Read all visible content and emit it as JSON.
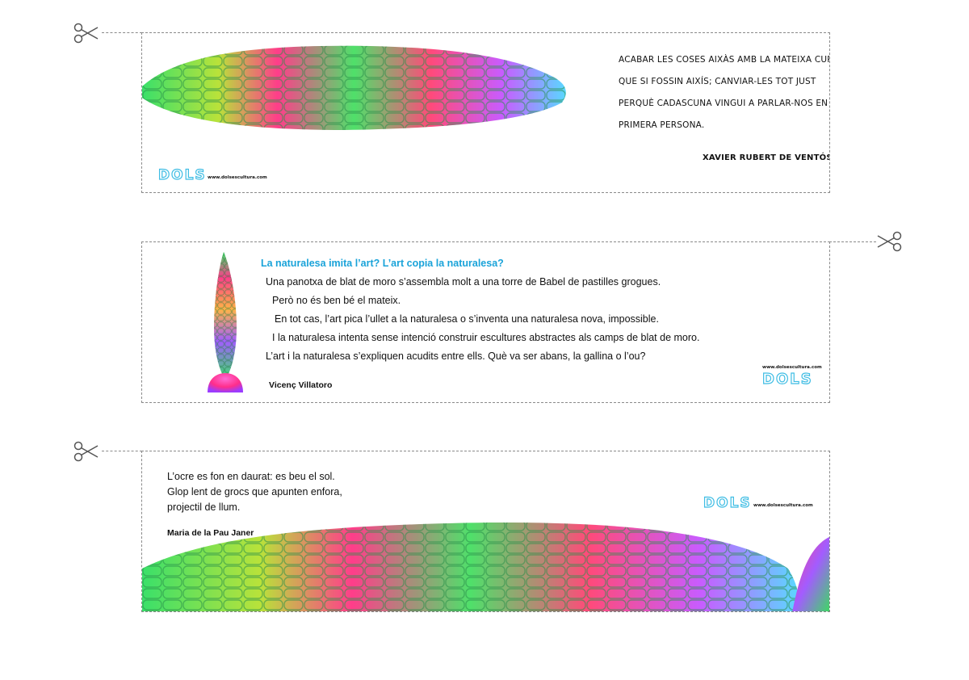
{
  "colors": {
    "accent": "#1aa3d9",
    "dols_outline": "#3fbde4",
    "cut_line": "#8a8a8a",
    "corn_pink": "#ff2e8a",
    "corn_green": "#37e05a",
    "corn_purple": "#9b5cff"
  },
  "icons": {
    "cut": "scissors-icon"
  },
  "card1": {
    "quote_lines": [
      "ACABAR LES COSES AIXÀS AMB LA MATEIXA CURA",
      "QUE SI FOSSIN AIXÍS; CANVIAR-LES TOT JUST",
      "PERQUÈ CADASCUNA VINGUI A PARLAR-NOS EN",
      "PRIMERA PERSONA."
    ],
    "author": "XAVIER RUBERT DE VENTÓS",
    "logo": "DOLS",
    "url": "www.dolsescultura.com"
  },
  "card2": {
    "heading": "La naturalesa imita l’art?  L’art copia la naturalesa?",
    "lines": [
      "Una panotxa de blat de moro s’assembla molt a una torre de Babel de pastilles grogues.",
      "Però no és ben bé el mateix.",
      "En tot cas, l’art pica l’ullet a la naturalesa o s’inventa una naturalesa nova, impossible.",
      "I la naturalesa intenta sense intenció construir escultures abstractes als camps de blat de moro.",
      "L’art i la naturalesa s’expliquen acudits entre ells. Què va ser abans, la gallina o l’ou?"
    ],
    "author": "Vicenç Villatoro",
    "url": "www.dolsescultura.com",
    "logo": "DOLS"
  },
  "card3": {
    "lines": [
      "L’ocre es fon en daurat: es beu el sol.",
      "Glop lent de grocs que apunten enfora,",
      "projectil de llum."
    ],
    "author": "Maria de la Pau Janer",
    "logo": "DOLS",
    "url": "www.dolsescultura.com"
  }
}
